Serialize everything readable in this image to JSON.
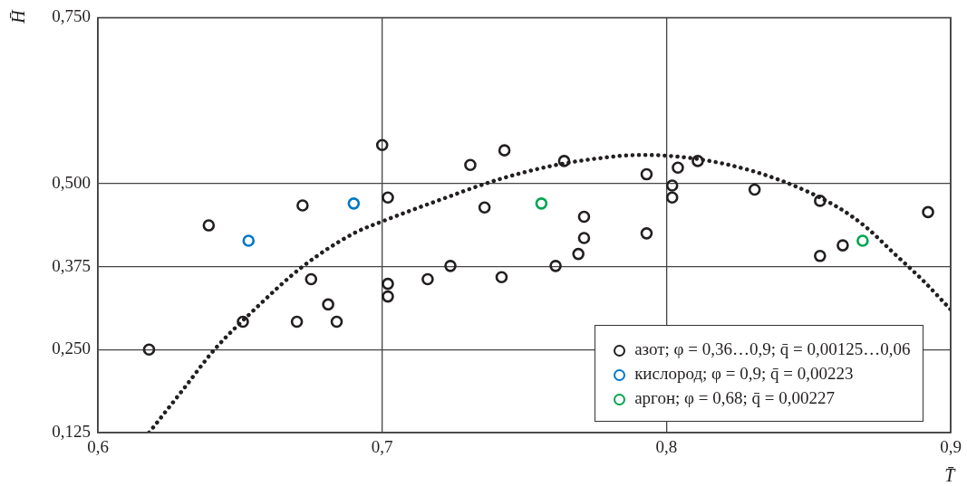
{
  "chart_data": {
    "type": "scatter",
    "xlabel": "T̄",
    "ylabel": "H̄",
    "xlim": [
      0.6,
      0.9
    ],
    "xticks": [
      {
        "value": 0.6,
        "label": "0,6"
      },
      {
        "value": 0.7,
        "label": "0,7"
      },
      {
        "value": 0.8,
        "label": "0,8"
      },
      {
        "value": 0.9,
        "label": "0,9"
      }
    ],
    "ylim": [
      0.125,
      0.75
    ],
    "yticks": [
      {
        "value": 0.125,
        "label": "0,125"
      },
      {
        "value": 0.25,
        "label": "0,250"
      },
      {
        "value": 0.375,
        "label": "0,375"
      },
      {
        "value": 0.5,
        "label": "0,500"
      },
      {
        "value": 0.75,
        "label": "0,750"
      }
    ],
    "grid": true,
    "legend": "bottom right",
    "marker": "circle",
    "series": [
      {
        "name": "азот; φ = 0,36…0,9; q̄ = 0,00125…0,06",
        "color": "#231f20",
        "x": [
          0.618,
          0.639,
          0.651,
          0.67,
          0.672,
          0.675,
          0.681,
          0.684,
          0.7,
          0.702,
          0.702,
          0.702,
          0.716,
          0.724,
          0.731,
          0.736,
          0.742,
          0.743,
          0.761,
          0.764,
          0.769,
          0.771,
          0.771,
          0.793,
          0.793,
          0.802,
          0.802,
          0.804,
          0.811,
          0.831,
          0.854,
          0.854,
          0.862,
          0.892
        ],
        "values": [
          0.25,
          0.437,
          0.292,
          0.292,
          0.467,
          0.356,
          0.318,
          0.292,
          0.558,
          0.479,
          0.349,
          0.33,
          0.356,
          0.376,
          0.528,
          0.464,
          0.359,
          0.55,
          0.376,
          0.534,
          0.394,
          0.418,
          0.45,
          0.425,
          0.514,
          0.497,
          0.479,
          0.524,
          0.534,
          0.491,
          0.474,
          0.391,
          0.407,
          0.457
        ]
      },
      {
        "name": "кислород; φ = 0,9; q̄ = 0,00223",
        "color": "#0077c8",
        "x": [
          0.653,
          0.69
        ],
        "values": [
          0.414,
          0.47
        ]
      },
      {
        "name": "аргон; φ = 0,68; q̄ = 0,00227",
        "color": "#00a550",
        "x": [
          0.756,
          0.869
        ],
        "values": [
          0.47,
          0.414
        ]
      },
      {
        "type": "line",
        "line_style": "dotted",
        "marker": "none",
        "color": "#231f20",
        "x": [
          0.618,
          0.63,
          0.641,
          0.655,
          0.672,
          0.69,
          0.7,
          0.72,
          0.74,
          0.76,
          0.78,
          0.79,
          0.8,
          0.82,
          0.84,
          0.86,
          0.87,
          0.88,
          0.89,
          0.9
        ],
        "values": [
          0.125,
          0.19,
          0.25,
          0.31,
          0.375,
          0.425,
          0.443,
          0.475,
          0.505,
          0.527,
          0.54,
          0.543,
          0.542,
          0.53,
          0.505,
          0.465,
          0.435,
          0.395,
          0.355,
          0.31
        ]
      }
    ]
  }
}
